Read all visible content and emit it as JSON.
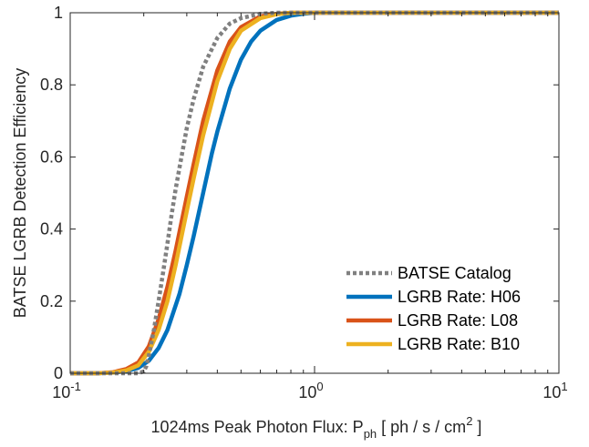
{
  "chart_data": {
    "type": "line",
    "xscale": "log",
    "xlim": [
      0.1,
      10
    ],
    "ylim": [
      0,
      1
    ],
    "xlabel": {
      "text": "1024ms Peak Photon Flux: P",
      "sub": "ph",
      "text2": " [ ph / s / cm",
      "sup": "2",
      "text3": " ]"
    },
    "ylabel": "BATSE LGRB Detection Efficiency",
    "xticks": [
      {
        "value": 0.1,
        "base": "10",
        "exp": "-1"
      },
      {
        "value": 1,
        "base": "10",
        "exp": "0"
      },
      {
        "value": 10,
        "base": "10",
        "exp": "1"
      }
    ],
    "yticks": [
      {
        "value": 0,
        "label": "0"
      },
      {
        "value": 0.2,
        "label": "0.2"
      },
      {
        "value": 0.4,
        "label": "0.4"
      },
      {
        "value": 0.6,
        "label": "0.6"
      },
      {
        "value": 0.8,
        "label": "0.8"
      },
      {
        "value": 1,
        "label": "1"
      }
    ],
    "grid": false,
    "legend_position": "bottom-right",
    "series": [
      {
        "name": "BATSE Catalog",
        "color": "#808080",
        "style": "dotted",
        "x": [
          0.1,
          0.19,
          0.2,
          0.205,
          0.21,
          0.22,
          0.23,
          0.24,
          0.25,
          0.26,
          0.27,
          0.28,
          0.3,
          0.32,
          0.35,
          0.4,
          0.45,
          0.5,
          0.6,
          0.7,
          0.8,
          1,
          2,
          5,
          10
        ],
        "y": [
          0,
          0,
          0.005,
          0.02,
          0.05,
          0.12,
          0.2,
          0.28,
          0.36,
          0.44,
          0.51,
          0.57,
          0.68,
          0.76,
          0.85,
          0.93,
          0.97,
          0.985,
          0.997,
          1,
          1,
          1,
          1,
          1,
          1
        ]
      },
      {
        "name": "LGRB Rate: H06",
        "color": "#0072BD",
        "style": "solid",
        "x": [
          0.1,
          0.13,
          0.15,
          0.17,
          0.19,
          0.21,
          0.23,
          0.25,
          0.28,
          0.3,
          0.32,
          0.35,
          0.38,
          0.4,
          0.45,
          0.5,
          0.55,
          0.6,
          0.7,
          0.8,
          0.9,
          1,
          1.5,
          2,
          5,
          10
        ],
        "y": [
          0,
          0,
          0.002,
          0.006,
          0.015,
          0.035,
          0.07,
          0.12,
          0.22,
          0.3,
          0.38,
          0.5,
          0.61,
          0.67,
          0.79,
          0.87,
          0.92,
          0.95,
          0.98,
          0.992,
          0.997,
          1,
          1,
          1,
          1,
          1
        ]
      },
      {
        "name": "LGRB Rate: L08",
        "color": "#D95319",
        "style": "solid",
        "x": [
          0.1,
          0.13,
          0.15,
          0.17,
          0.19,
          0.21,
          0.23,
          0.25,
          0.27,
          0.3,
          0.32,
          0.35,
          0.4,
          0.45,
          0.5,
          0.6,
          0.7,
          0.8,
          1,
          2,
          5,
          10
        ],
        "y": [
          0,
          0,
          0.003,
          0.012,
          0.03,
          0.075,
          0.15,
          0.24,
          0.34,
          0.49,
          0.58,
          0.7,
          0.84,
          0.92,
          0.96,
          0.99,
          0.997,
          1,
          1,
          1,
          1,
          1
        ]
      },
      {
        "name": "LGRB Rate: B10",
        "color": "#EDB120",
        "style": "solid",
        "x": [
          0.1,
          0.13,
          0.15,
          0.17,
          0.19,
          0.21,
          0.23,
          0.25,
          0.27,
          0.3,
          0.32,
          0.35,
          0.4,
          0.45,
          0.5,
          0.6,
          0.7,
          0.8,
          1,
          2,
          5,
          10
        ],
        "y": [
          0,
          0,
          0.002,
          0.008,
          0.022,
          0.06,
          0.12,
          0.2,
          0.3,
          0.45,
          0.54,
          0.66,
          0.81,
          0.9,
          0.95,
          0.985,
          0.996,
          1,
          1,
          1,
          1,
          1
        ]
      }
    ]
  }
}
